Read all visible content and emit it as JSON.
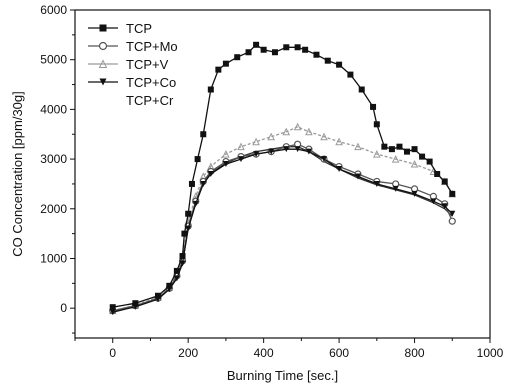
{
  "chart_data": {
    "type": "line",
    "title": "",
    "xlabel": "Burning Time [sec.]",
    "ylabel": "CO Concentration [ppm/30g]",
    "xlim": [
      -100,
      1000
    ],
    "ylim": [
      -600,
      6000
    ],
    "xticks": [
      0,
      200,
      400,
      600,
      800,
      1000
    ],
    "yticks": [
      0,
      1000,
      2000,
      3000,
      4000,
      5000,
      6000
    ],
    "x_tick_labels": [
      "0",
      "200",
      "400",
      "600",
      "800",
      "1000"
    ],
    "y_tick_labels": [
      "0",
      "1000",
      "2000",
      "3000",
      "4000",
      "5000",
      "6000"
    ],
    "legend_position": "top-left",
    "grid": false,
    "series": [
      {
        "name": "TCP",
        "marker": "square",
        "color": "#111111",
        "x": [
          0,
          60,
          120,
          150,
          170,
          185,
          190,
          200,
          210,
          225,
          240,
          260,
          280,
          300,
          330,
          360,
          380,
          400,
          430,
          460,
          490,
          510,
          540,
          570,
          600,
          630,
          660,
          690,
          700,
          720,
          740,
          760,
          780,
          800,
          820,
          840,
          860,
          880,
          900
        ],
        "y": [
          20,
          100,
          250,
          450,
          750,
          1050,
          1500,
          1900,
          2500,
          3000,
          3500,
          4400,
          4800,
          4920,
          5050,
          5150,
          5300,
          5200,
          5150,
          5250,
          5250,
          5200,
          5100,
          4980,
          4900,
          4700,
          4400,
          4050,
          3700,
          3250,
          3200,
          3250,
          3150,
          3200,
          3050,
          2950,
          2700,
          2550,
          2300
        ]
      },
      {
        "name": "TCP+Mo",
        "marker": "circle",
        "color": "#555555",
        "x": [
          0,
          60,
          120,
          150,
          170,
          185,
          200,
          220,
          240,
          260,
          300,
          340,
          380,
          420,
          460,
          490,
          520,
          560,
          600,
          650,
          700,
          750,
          800,
          850,
          880,
          900
        ],
        "y": [
          -50,
          50,
          200,
          400,
          650,
          950,
          1650,
          2150,
          2550,
          2750,
          2950,
          3050,
          3100,
          3150,
          3250,
          3300,
          3200,
          3000,
          2850,
          2700,
          2550,
          2500,
          2400,
          2250,
          2100,
          1750
        ]
      },
      {
        "name": "TCP+V",
        "marker": "triangle-up",
        "color": "#9a9a9a",
        "x": [
          0,
          60,
          120,
          150,
          170,
          185,
          200,
          220,
          240,
          260,
          300,
          340,
          380,
          420,
          460,
          490,
          520,
          560,
          600,
          650,
          700,
          750,
          800,
          850,
          880,
          900
        ],
        "y": [
          -50,
          60,
          220,
          420,
          700,
          1000,
          1750,
          2250,
          2650,
          2850,
          3100,
          3250,
          3350,
          3450,
          3550,
          3650,
          3550,
          3450,
          3350,
          3250,
          3100,
          3000,
          2900,
          2750,
          2550,
          2300
        ]
      },
      {
        "name": "TCP+Co",
        "marker": "triangle-down",
        "color": "#111111",
        "x": [
          0,
          60,
          120,
          150,
          170,
          185,
          200,
          220,
          240,
          260,
          300,
          340,
          380,
          420,
          460,
          490,
          520,
          560,
          600,
          650,
          700,
          750,
          800,
          850,
          880,
          900
        ],
        "y": [
          -80,
          30,
          180,
          380,
          600,
          900,
          1600,
          2100,
          2500,
          2700,
          2900,
          3000,
          3100,
          3150,
          3200,
          3200,
          3150,
          3000,
          2800,
          2650,
          2500,
          2400,
          2300,
          2150,
          2050,
          1900
        ]
      },
      {
        "name": "TCP+Cr",
        "marker": "none",
        "color": "#333333",
        "x": [
          0,
          60,
          120,
          150,
          170,
          185,
          200,
          220,
          240,
          260,
          300,
          340,
          380,
          420,
          460,
          490,
          520,
          560,
          600,
          650,
          700,
          750,
          800,
          850,
          880,
          900
        ],
        "y": [
          -60,
          40,
          190,
          390,
          620,
          920,
          1620,
          2120,
          2520,
          2720,
          2920,
          3050,
          3150,
          3200,
          3250,
          3250,
          3150,
          2950,
          2800,
          2620,
          2480,
          2380,
          2280,
          2120,
          2000,
          1850
        ]
      }
    ]
  }
}
